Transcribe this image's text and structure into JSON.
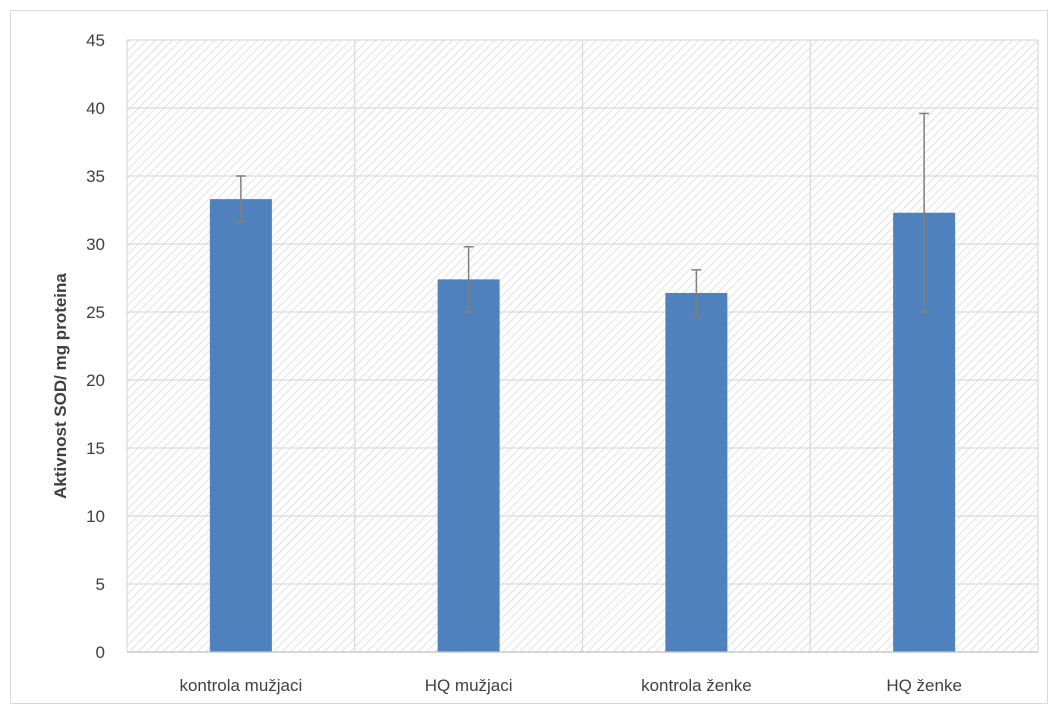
{
  "chart_data": {
    "type": "bar",
    "title": "",
    "xlabel": "",
    "ylabel": "Aktivnost SOD/ mg proteina",
    "categories": [
      "kontrola mužjaci",
      "HQ mužjaci",
      "kontrola ženke",
      "HQ ženke"
    ],
    "series": [
      {
        "values": [
          33.3,
          27.4,
          26.4,
          32.3
        ],
        "error": [
          1.7,
          2.4,
          1.7,
          7.3
        ]
      }
    ],
    "ylim": [
      0,
      45
    ],
    "yticks": [
      0,
      5,
      10,
      15,
      20,
      25,
      30,
      35,
      40,
      45
    ],
    "grid": true,
    "legend": "none",
    "colors": {
      "bar": "#4f81bd",
      "error_bar": "#7f7f7f",
      "gridline": "#d9d9d9",
      "hatch": "#d0d0d0"
    }
  }
}
